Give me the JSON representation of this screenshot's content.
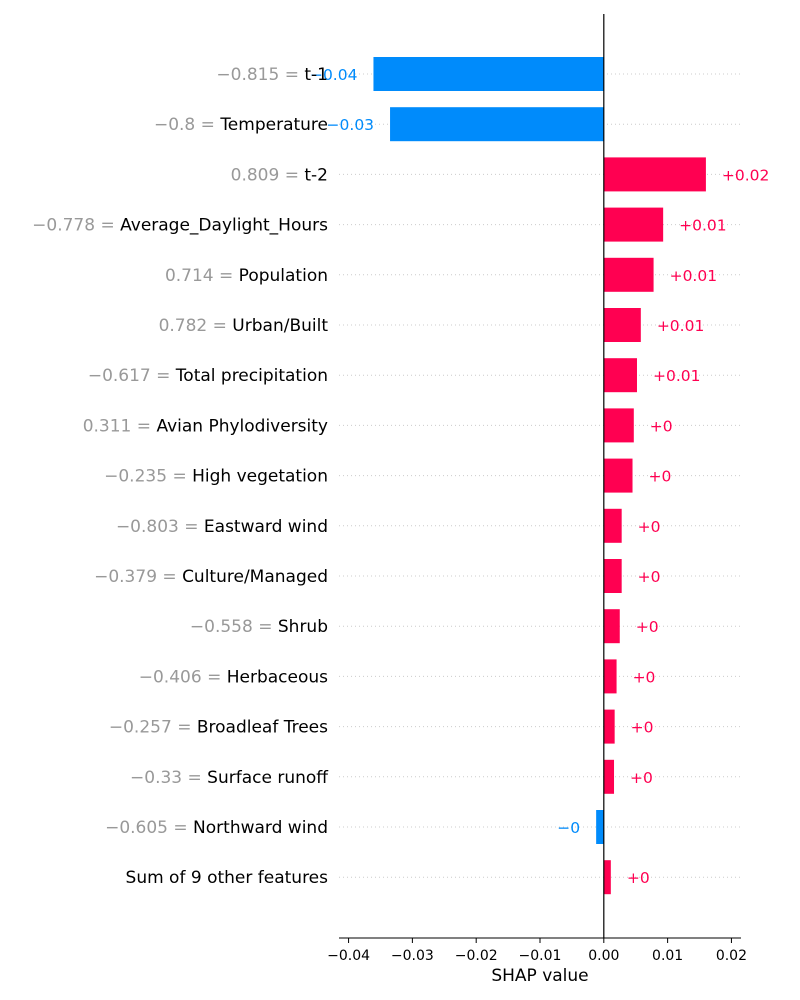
{
  "chart_data": {
    "type": "bar",
    "orientation": "horizontal",
    "chart_style": "shap-waterfall-bar",
    "xlabel": "SHAP value",
    "xlim": [
      -0.0415,
      0.0215
    ],
    "xticks": [
      -0.04,
      -0.03,
      -0.02,
      -0.01,
      0.0,
      0.01,
      0.02
    ],
    "xtick_labels": [
      "−0.04",
      "−0.03",
      "−0.02",
      "−0.01",
      "0.00",
      "0.01",
      "0.02"
    ],
    "grid": "dotted horizontal row guides",
    "colors": {
      "positive": "#ff0051",
      "negative": "#008bfb",
      "feature_value": "#999999",
      "feature_name": "#000000"
    },
    "features": [
      {
        "value_label": "−0.815 = ",
        "name": "t-1",
        "shap": -0.0361,
        "label": "−0.04"
      },
      {
        "value_label": "−0.8 = ",
        "name": "Temperature",
        "shap": -0.0335,
        "label": "−0.03"
      },
      {
        "value_label": "0.809 = ",
        "name": "t-2",
        "shap": 0.016,
        "label": "+0.02"
      },
      {
        "value_label": "−0.778 = ",
        "name": "Average_Daylight_Hours",
        "shap": 0.0093,
        "label": "+0.01"
      },
      {
        "value_label": "0.714 = ",
        "name": "Population",
        "shap": 0.0078,
        "label": "+0.01"
      },
      {
        "value_label": "0.782 = ",
        "name": "Urban/Built",
        "shap": 0.0058,
        "label": "+0.01"
      },
      {
        "value_label": "−0.617 = ",
        "name": "Total precipitation",
        "shap": 0.0052,
        "label": "+0.01"
      },
      {
        "value_label": "0.311 = ",
        "name": "Avian Phylodiversity",
        "shap": 0.0047,
        "label": "+0"
      },
      {
        "value_label": "−0.235 = ",
        "name": "High vegetation",
        "shap": 0.0045,
        "label": "+0"
      },
      {
        "value_label": "−0.803 = ",
        "name": "Eastward wind",
        "shap": 0.0028,
        "label": "+0"
      },
      {
        "value_label": "−0.379 = ",
        "name": "Culture/Managed",
        "shap": 0.0028,
        "label": "+0"
      },
      {
        "value_label": "−0.558 = ",
        "name": "Shrub",
        "shap": 0.0025,
        "label": "+0"
      },
      {
        "value_label": "−0.406 = ",
        "name": "Herbaceous",
        "shap": 0.002,
        "label": "+0"
      },
      {
        "value_label": "−0.257 = ",
        "name": "Broadleaf Trees",
        "shap": 0.0017,
        "label": "+0"
      },
      {
        "value_label": "−0.33 = ",
        "name": "Surface runoff",
        "shap": 0.0016,
        "label": "+0"
      },
      {
        "value_label": "−0.605 = ",
        "name": "Northward wind",
        "shap": -0.0012,
        "label": "−0"
      },
      {
        "value_label": "",
        "name": "Sum of 9 other features",
        "shap": 0.0011,
        "label": "+0"
      }
    ]
  }
}
